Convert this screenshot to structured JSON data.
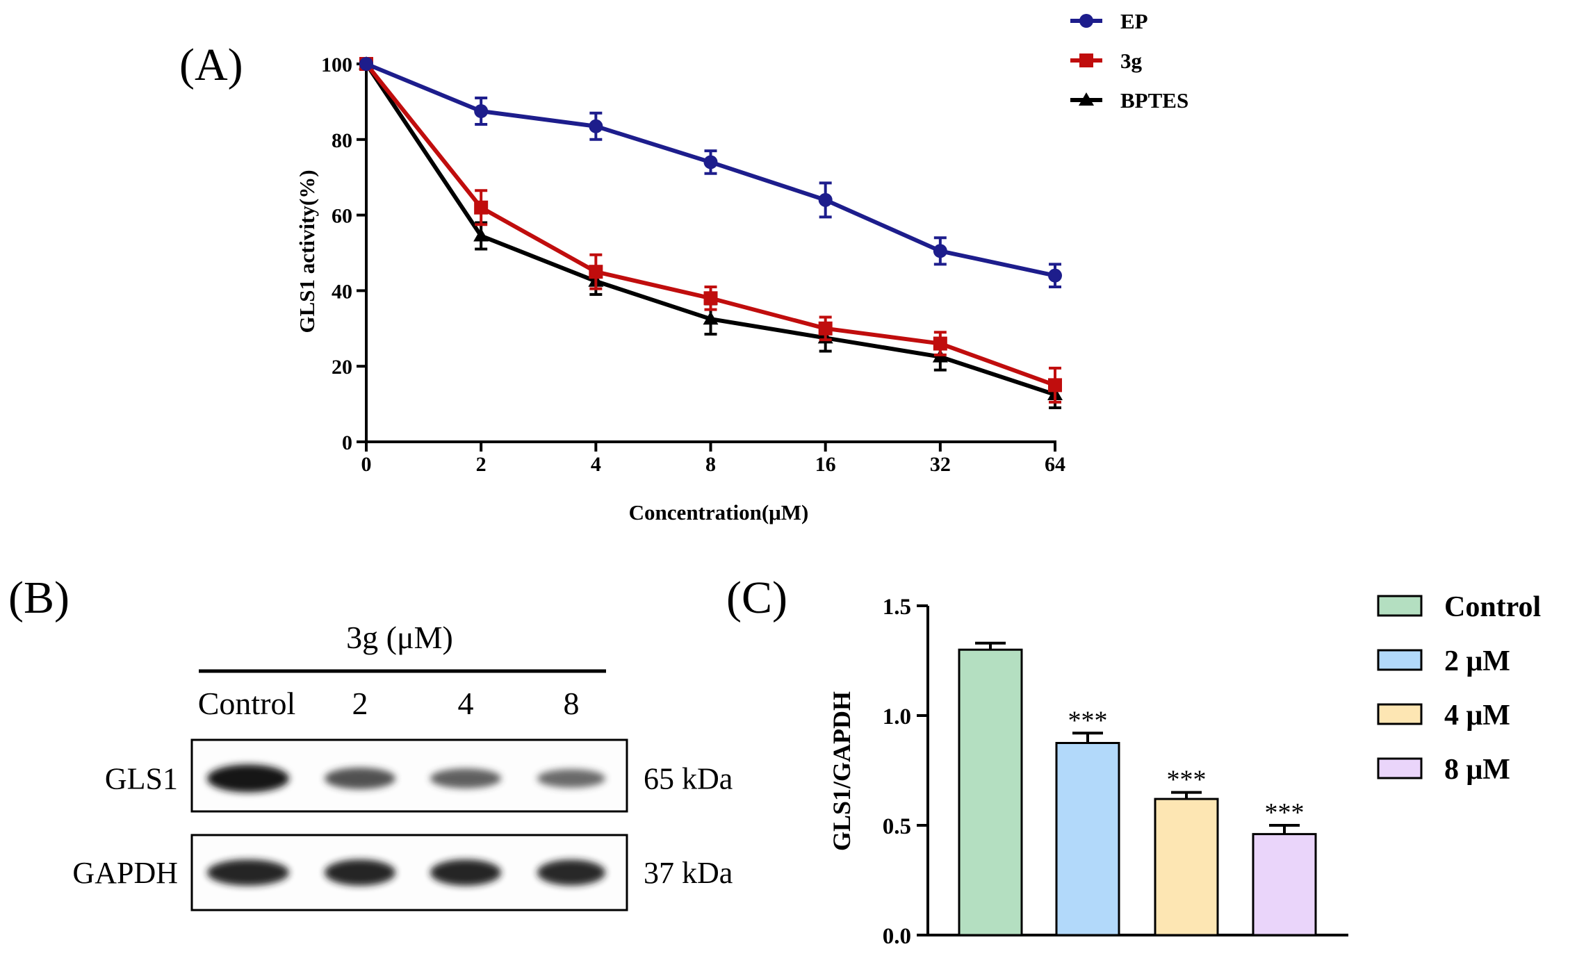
{
  "panels": {
    "a": "(A)",
    "b": "(B)",
    "c": "(C)"
  },
  "colors": {
    "ep": "#1d1d8c",
    "g3": "#c00d0d",
    "bptes": "#000000",
    "control": "#b4dfc1",
    "um2": "#b2d9fa",
    "um4": "#fde6b3",
    "um8": "#ead5fa"
  },
  "blot": {
    "header": "3g (μM)",
    "lanes": [
      "Control",
      "2",
      "4",
      "8"
    ],
    "rows": [
      {
        "label": "GLS1",
        "size": "65 kDa",
        "intensity": [
          1.0,
          0.62,
          0.52,
          0.45
        ]
      },
      {
        "label": "GAPDH",
        "size": "37 kDa",
        "intensity": [
          0.9,
          0.9,
          0.9,
          0.88
        ]
      }
    ]
  },
  "chart_data": [
    {
      "type": "line",
      "panel": "A",
      "title": "",
      "xlabel": "Concentration(μM)",
      "ylabel": "GLS1 activity(%)",
      "categories": [
        "0",
        "2",
        "4",
        "8",
        "16",
        "32",
        "64"
      ],
      "ylim": [
        0,
        100
      ],
      "yticks": [
        "0",
        "20",
        "40",
        "60",
        "80",
        "100"
      ],
      "legend_position": "top-right",
      "series": [
        {
          "name": "EP",
          "marker": "circle",
          "values": [
            100,
            87.5,
            83.5,
            74,
            64,
            50.5,
            44
          ],
          "errors": [
            0,
            3.5,
            3.5,
            3,
            4.5,
            3.5,
            3
          ]
        },
        {
          "name": "3g",
          "marker": "square",
          "values": [
            100,
            62,
            45,
            38,
            30,
            26,
            15
          ],
          "errors": [
            0,
            4.5,
            4.5,
            3,
            3,
            3,
            4.5
          ]
        },
        {
          "name": "BPTES",
          "marker": "triangle",
          "values": [
            100,
            54.5,
            42.5,
            32.5,
            27.5,
            22.5,
            12.5
          ],
          "errors": [
            0,
            3.5,
            3.5,
            4,
            3.5,
            3.5,
            3.5
          ]
        }
      ]
    },
    {
      "type": "bar",
      "panel": "C",
      "title": "",
      "xlabel": "",
      "ylabel": "GLS1/GAPDH",
      "categories": [
        "Control",
        "2 μM",
        "4 μM",
        "8 μM"
      ],
      "values": [
        1.3,
        0.875,
        0.62,
        0.46
      ],
      "errors": [
        0.03,
        0.045,
        0.03,
        0.04
      ],
      "significance": [
        "",
        "***",
        "***",
        "***"
      ],
      "ylim": [
        0,
        1.5
      ],
      "yticks": [
        "0.0",
        "0.5",
        "1.0",
        "1.5"
      ],
      "legend_position": "right"
    }
  ]
}
